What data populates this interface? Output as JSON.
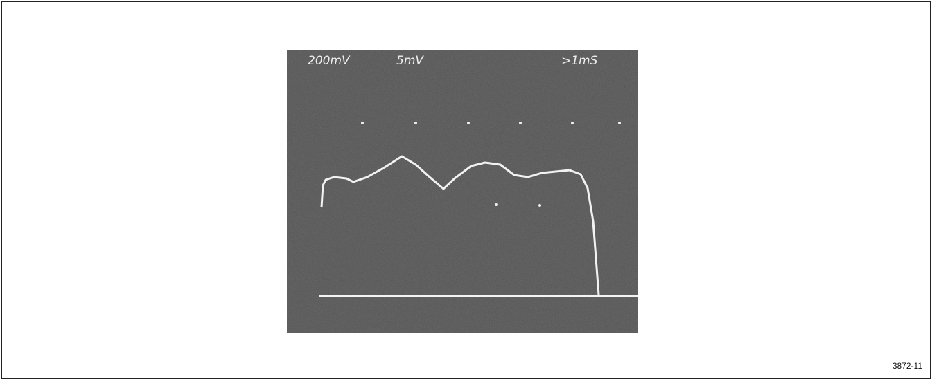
{
  "screen": {
    "readouts": [
      "200mV",
      "5mV",
      ">1mS"
    ]
  },
  "figure_number": "3872-11"
}
